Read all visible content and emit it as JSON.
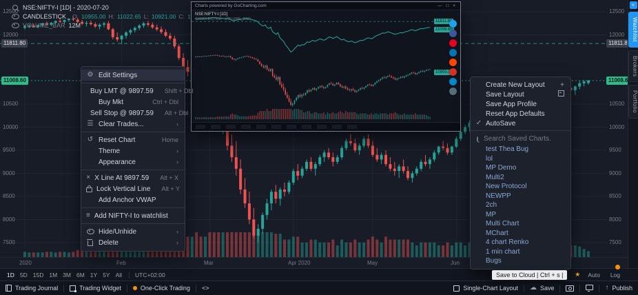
{
  "colors": {
    "bg": "#171c27",
    "panel": "#1d212c",
    "up": "#26a69a",
    "down": "#ef5350",
    "accent": "#2196f3",
    "green_tag": "#2abf8a",
    "dark_tag": "#3a3f4b",
    "orange": "#ff9100",
    "saved_chart_text": "#88a8d2"
  },
  "legend": {
    "symbol": "NSE:NIFTY-I [1D] - 2020-07-20",
    "series": "CANDLESTICK",
    "o_label": "O:",
    "o": "10955.00",
    "h_label": "H:",
    "h": "11022.65",
    "l_label": "L:",
    "l": "10921.00",
    "c_label": "C:",
    "c": "11008.60",
    "volume_label": "VOLUME_BAR",
    "volume_value": "12M"
  },
  "price_axis": {
    "ticks": [
      12500,
      12000,
      10500,
      10000,
      9500,
      9000,
      8500,
      8000,
      7500
    ],
    "dark_tag": {
      "label": "11811.80",
      "price": 11811.8
    },
    "green_tag": {
      "label": "11008.60",
      "price": 11008.6
    }
  },
  "chart_data": {
    "type": "candlestick",
    "symbol": "NSE:NIFTY-I",
    "interval": "1D",
    "as_of": "2020-07-20",
    "ylim": [
      7400,
      12600
    ],
    "grid": true,
    "levels": {
      "dashed_green": 11811.8,
      "last_price": 11008.6
    },
    "months": [
      {
        "label": "2020",
        "bar": 0
      },
      {
        "label": "Feb",
        "bar": 22
      },
      {
        "label": "Mar",
        "bar": 42
      },
      {
        "label": "Apr 2020",
        "bar": 61
      },
      {
        "label": "May",
        "bar": 79
      },
      {
        "label": "Jun",
        "bar": 98
      }
    ],
    "candles": [
      [
        12150,
        12210,
        12120,
        12180
      ],
      [
        12180,
        12230,
        12150,
        12200
      ],
      [
        12200,
        12240,
        12160,
        12170
      ],
      [
        12170,
        12220,
        12140,
        12210
      ],
      [
        12210,
        12260,
        12180,
        12250
      ],
      [
        12250,
        12290,
        12200,
        12220
      ],
      [
        12220,
        12280,
        12190,
        12260
      ],
      [
        12260,
        12310,
        12230,
        12300
      ],
      [
        12300,
        12350,
        12260,
        12280
      ],
      [
        12280,
        12330,
        12240,
        12320
      ],
      [
        12320,
        12360,
        12280,
        12350
      ],
      [
        12350,
        12390,
        12300,
        12330
      ],
      [
        12330,
        12370,
        12250,
        12280
      ],
      [
        12280,
        12320,
        12210,
        12240
      ],
      [
        12240,
        12300,
        12180,
        12260
      ],
      [
        12260,
        12310,
        12200,
        12230
      ],
      [
        12230,
        12270,
        12150,
        12180
      ],
      [
        12180,
        12250,
        12120,
        12220
      ],
      [
        12220,
        12280,
        12160,
        12250
      ],
      [
        12250,
        12300,
        12100,
        12120
      ],
      [
        12120,
        12150,
        11900,
        11950
      ],
      [
        11950,
        12050,
        11850,
        11900
      ],
      [
        11900,
        12000,
        11800,
        11980
      ],
      [
        11980,
        12080,
        11920,
        12050
      ],
      [
        12050,
        12130,
        12000,
        12100
      ],
      [
        12100,
        12180,
        12050,
        12150
      ],
      [
        12150,
        12230,
        12100,
        12200
      ],
      [
        12200,
        12280,
        12150,
        12250
      ],
      [
        12250,
        12300,
        12180,
        12220
      ],
      [
        12220,
        12270,
        12130,
        12160
      ],
      [
        12160,
        12220,
        12080,
        12120
      ],
      [
        12120,
        12180,
        12020,
        12060
      ],
      [
        12060,
        12120,
        11950,
        11980
      ],
      [
        11980,
        12040,
        11880,
        11920
      ],
      [
        11920,
        11980,
        11700,
        11750
      ],
      [
        11750,
        11800,
        11450,
        11500
      ],
      [
        11500,
        11600,
        11250,
        11300
      ],
      [
        11300,
        11450,
        11100,
        11200
      ],
      [
        11200,
        11400,
        11050,
        11350
      ],
      [
        11350,
        11450,
        10950,
        11000
      ],
      [
        11000,
        11150,
        10800,
        10850
      ],
      [
        10850,
        11100,
        10750,
        11050
      ],
      [
        11050,
        11100,
        10300,
        10400
      ],
      [
        10400,
        10600,
        10150,
        10250
      ],
      [
        10250,
        10500,
        9950,
        10050
      ],
      [
        10050,
        10350,
        9850,
        10300
      ],
      [
        10300,
        10350,
        9500,
        9600
      ],
      [
        9600,
        9850,
        9250,
        9350
      ],
      [
        9350,
        9700,
        8950,
        9100
      ],
      [
        9100,
        9300,
        8550,
        8650
      ],
      [
        8650,
        8900,
        8250,
        8350
      ],
      [
        8350,
        8600,
        7900,
        8000
      ],
      [
        8000,
        8250,
        7600,
        7650
      ],
      [
        7650,
        7900,
        7510,
        7800
      ],
      [
        7800,
        8150,
        7700,
        8100
      ],
      [
        8100,
        8450,
        8000,
        8350
      ],
      [
        8350,
        8650,
        8200,
        8600
      ],
      [
        8600,
        8750,
        8350,
        8450
      ],
      [
        8450,
        8700,
        8300,
        8650
      ],
      [
        8650,
        8800,
        8500,
        8600
      ],
      [
        8600,
        8850,
        8550,
        8800
      ],
      [
        8800,
        9100,
        8750,
        9050
      ],
      [
        9050,
        9200,
        8850,
        8950
      ],
      [
        8950,
        9150,
        8900,
        9100
      ],
      [
        9100,
        9300,
        9050,
        9250
      ],
      [
        9250,
        9350,
        9050,
        9100
      ],
      [
        9100,
        9250,
        8950,
        9200
      ],
      [
        9200,
        9400,
        9150,
        9350
      ],
      [
        9350,
        9500,
        9250,
        9450
      ],
      [
        9450,
        9550,
        9300,
        9350
      ],
      [
        9350,
        9450,
        9150,
        9250
      ],
      [
        9250,
        9400,
        9200,
        9350
      ],
      [
        9350,
        9600,
        9300,
        9550
      ],
      [
        9550,
        9750,
        9500,
        9700
      ],
      [
        9700,
        9850,
        9600,
        9650
      ],
      [
        9650,
        9750,
        9450,
        9500
      ],
      [
        9500,
        9650,
        9400,
        9600
      ],
      [
        9600,
        9800,
        9550,
        9750
      ],
      [
        9750,
        9850,
        9550,
        9600
      ],
      [
        9600,
        9700,
        9350,
        9400
      ],
      [
        9400,
        9550,
        9250,
        9300
      ],
      [
        9300,
        9450,
        9200,
        9400
      ],
      [
        9400,
        9500,
        9150,
        9200
      ],
      [
        9200,
        9350,
        9050,
        9100
      ],
      [
        9100,
        9250,
        8950,
        9050
      ],
      [
        9050,
        9200,
        8900,
        9150
      ],
      [
        9150,
        9300,
        9000,
        9050
      ],
      [
        9050,
        9150,
        8850,
        8900
      ],
      [
        8900,
        9050,
        8800,
        9000
      ],
      [
        9000,
        9150,
        8950,
        9100
      ],
      [
        9100,
        9300,
        9050,
        9250
      ],
      [
        9250,
        9400,
        9150,
        9200
      ],
      [
        9200,
        9350,
        9100,
        9300
      ],
      [
        9300,
        9500,
        9250,
        9450
      ],
      [
        9450,
        9600,
        9400,
        9580
      ],
      [
        9580,
        9700,
        9500,
        9550
      ],
      [
        9550,
        9650,
        9400,
        9450
      ],
      [
        9450,
        9600,
        9400,
        9580
      ],
      [
        9580,
        9800,
        9550,
        9750
      ],
      [
        9750,
        9950,
        9700,
        9900
      ],
      [
        9900,
        10050,
        9850,
        10000
      ],
      [
        10000,
        10150,
        9900,
        10100
      ],
      [
        10100,
        10300,
        10050,
        10250
      ],
      [
        10250,
        10400,
        10150,
        10200
      ],
      [
        10200,
        10350,
        10100,
        10300
      ],
      [
        10300,
        10450,
        10250,
        10400
      ],
      [
        10400,
        10550,
        10300,
        10350
      ],
      [
        10350,
        10450,
        10200,
        10250
      ],
      [
        10250,
        10350,
        10100,
        10150
      ],
      [
        10150,
        10300,
        10000,
        10050
      ],
      [
        10050,
        10200,
        9950,
        10150
      ],
      [
        10150,
        10250,
        10050,
        10200
      ],
      [
        10200,
        10350,
        10150,
        10300
      ],
      [
        10300,
        10400,
        10200,
        10250
      ],
      [
        10250,
        10400,
        10150,
        10350
      ],
      [
        10350,
        10500,
        10300,
        10450
      ],
      [
        10450,
        10550,
        10350,
        10500
      ],
      [
        10500,
        10650,
        10450,
        10600
      ],
      [
        10600,
        10750,
        10550,
        10700
      ],
      [
        10700,
        10800,
        10600,
        10650
      ],
      [
        10650,
        10750,
        10500,
        10550
      ],
      [
        10550,
        10700,
        10500,
        10650
      ],
      [
        10650,
        10800,
        10600,
        10750
      ],
      [
        10750,
        10900,
        10700,
        10850
      ],
      [
        10850,
        10950,
        10750,
        10800
      ],
      [
        10800,
        10900,
        10700,
        10880
      ],
      [
        10880,
        11000,
        10820,
        10950
      ],
      [
        10950,
        11020,
        10880,
        10990
      ],
      [
        10955,
        11023,
        10921,
        11009
      ]
    ]
  },
  "context_menu": {
    "groups": [
      [
        {
          "icon": "gear",
          "label": "Edit Settings",
          "highlight": true
        }
      ],
      [
        {
          "label": "Buy LMT @ 9897.59",
          "shortcut": "Shift + Dbl"
        },
        {
          "label": "Buy Mkt",
          "shortcut": "Ctrl + Dbl"
        },
        {
          "label": "Sell Stop @ 9897.59",
          "shortcut": "Alt + Dbl"
        },
        {
          "icon": "sliders",
          "label": "Clear Trades...",
          "chevron": true
        }
      ],
      [
        {
          "icon": "reset",
          "label": "Reset Chart",
          "shortcut": "Home"
        },
        {
          "label": "Theme",
          "chevron": true
        },
        {
          "label": "Appearance",
          "chevron": true
        }
      ],
      [
        {
          "icon": "xline",
          "label": "X Line At 9897.59",
          "shortcut": "Alt + X"
        },
        {
          "icon": "lock",
          "label": "Lock Vertical Line",
          "shortcut": "Alt + Y"
        },
        {
          "label": "Add Anchor VWAP"
        }
      ],
      [
        {
          "icon": "list",
          "label": "Add NIFTY-I to watchlist"
        }
      ],
      [
        {
          "icon": "eye",
          "label": "Hide/Unhide",
          "chevron": true
        },
        {
          "icon": "trash",
          "label": "Delete",
          "chevron": true
        }
      ]
    ]
  },
  "layout_menu": {
    "actions": [
      {
        "label": "Create New Layout",
        "right_icon": "plus"
      },
      {
        "label": "Save Layout",
        "right_icon": "floppy"
      },
      {
        "label": "Save App Profile"
      },
      {
        "label": "Reset App Defaults"
      },
      {
        "label": "AutoSave",
        "left_icon": "check"
      }
    ],
    "search_placeholder": "Search Saved Charts.",
    "saved_charts": [
      "test Thea Bug",
      "lol",
      "MP Demo",
      "Multi2",
      "New Protocol",
      "NEWPP",
      "2ch",
      "MP",
      "Multi Chart",
      "MChart",
      "4 chart Renko",
      "1 min chart",
      "Bugs"
    ]
  },
  "popup": {
    "title": "Charts powered by GoCharting.com",
    "controls": "—  □  ×",
    "legend1": "NSE:NIFTY-I [1D]",
    "legend2": "CANDLESTICK · VOLUME_BAR",
    "tags": [
      "11811.80",
      "11008.60",
      "10955.00"
    ],
    "share_buttons": [
      {
        "name": "share-twitter",
        "color": "#1da1f2"
      },
      {
        "name": "share-facebook",
        "color": "#3b5998"
      },
      {
        "name": "share-pinterest",
        "color": "#e60023"
      },
      {
        "name": "share-linkedin",
        "color": "#0077b5"
      },
      {
        "name": "share-reddit",
        "color": "#ff4500"
      },
      {
        "name": "share-mail",
        "color": "#d93025"
      },
      {
        "name": "share-telegram",
        "color": "#0088cc"
      },
      {
        "name": "share-more",
        "color": "#546e7a"
      }
    ]
  },
  "timeframe_bar": {
    "ranges": [
      "1D",
      "5D",
      "15D",
      "1M",
      "3M",
      "6M",
      "1Y",
      "5Y",
      "All"
    ],
    "active": "1D",
    "timezone": "UTC+02:00",
    "right": [
      "Auto",
      "Log"
    ]
  },
  "footer": {
    "left": [
      {
        "icon": "book",
        "label": "Trading Journal"
      },
      {
        "icon": "widget",
        "label": "Trading Widget"
      },
      {
        "icon": "dot",
        "label": "One-Click Trading"
      },
      {
        "icon": null,
        "label": "<>"
      }
    ],
    "right": [
      {
        "icon": "grid",
        "label": "Single-Chart Layout"
      },
      {
        "icon": "cloud",
        "label": "Save"
      },
      {
        "icon": "camera",
        "label": ""
      },
      {
        "icon": "monitor",
        "label": ""
      },
      {
        "icon": "publish",
        "label": "Publish"
      }
    ]
  },
  "tooltip": {
    "text": "Save to Cloud | Ctrl + s |"
  },
  "side_tabs": [
    {
      "label": "Watchlist",
      "active": true
    },
    {
      "label": "Brokers",
      "active": false
    },
    {
      "label": "Portfolio",
      "active": false
    }
  ]
}
